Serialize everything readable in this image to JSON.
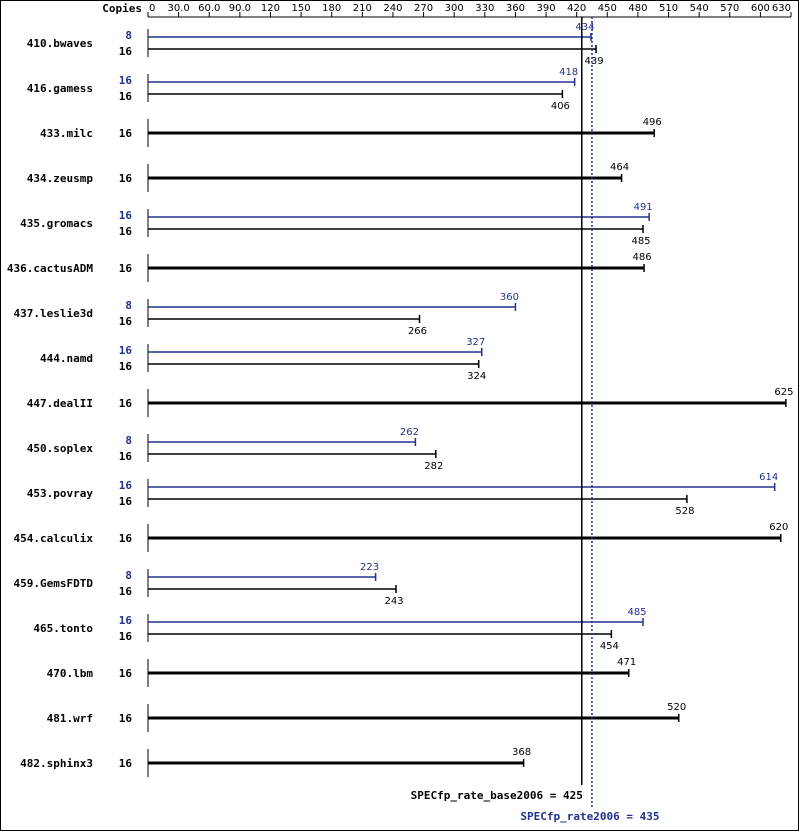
{
  "chart_data": {
    "type": "bar",
    "copies_header": "Copies",
    "categories": [
      "410.bwaves",
      "416.gamess",
      "433.milc",
      "434.zeusmp",
      "435.gromacs",
      "436.cactusADM",
      "437.leslie3d",
      "444.namd",
      "447.dealII",
      "450.soplex",
      "453.povray",
      "454.calculix",
      "459.GemsFDTD",
      "465.tonto",
      "470.lbm",
      "481.wrf",
      "482.sphinx3"
    ],
    "series": [
      {
        "color": "#000000",
        "values": [
          439,
          406,
          496,
          464,
          485,
          486,
          266,
          324,
          625,
          282,
          528,
          620,
          243,
          454,
          471,
          520,
          368
        ],
        "copies": [
          16,
          16,
          16,
          16,
          16,
          16,
          16,
          16,
          16,
          16,
          16,
          16,
          16,
          16,
          16,
          16,
          16
        ],
        "mean": 425,
        "mean_label": "SPECfp_rate_base2006 = 425"
      },
      {
        "color": "#22318f",
        "values": [
          434,
          418,
          null,
          null,
          491,
          null,
          360,
          327,
          null,
          262,
          614,
          null,
          223,
          485,
          null,
          null,
          null
        ],
        "copies": [
          8,
          16,
          null,
          null,
          16,
          null,
          8,
          16,
          null,
          8,
          16,
          null,
          8,
          16,
          null,
          null,
          null
        ],
        "mean": 435,
        "mean_label": "SPECfp_rate2006 = 435"
      }
    ],
    "xlim": [
      0,
      630
    ],
    "xticks": [
      0,
      {
        "value": 30,
        "label": "30.0"
      },
      {
        "value": 60,
        "label": "60.0"
      },
      {
        "value": 90,
        "label": "90.0"
      },
      120,
      150,
      180,
      210,
      240,
      270,
      300,
      330,
      360,
      390,
      420,
      450,
      480,
      510,
      540,
      570,
      600,
      630
    ]
  }
}
